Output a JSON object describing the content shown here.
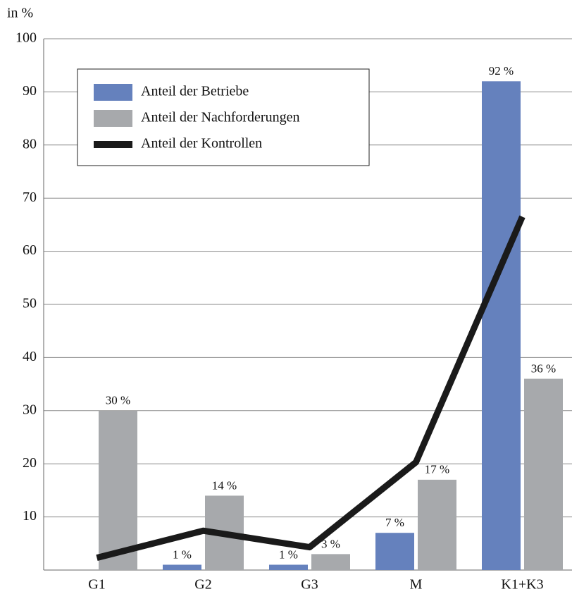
{
  "chart_data": {
    "type": "bar",
    "y_label": "in %",
    "categories": [
      "G1",
      "G2",
      "G3",
      "M",
      "K1+K3"
    ],
    "series": [
      {
        "name": "Anteil der Betriebe",
        "color": "#6581bd",
        "type": "bar",
        "values": [
          null,
          1,
          1,
          7,
          92
        ],
        "value_labels": [
          null,
          "1 %",
          "1 %",
          "7 %",
          "92 %"
        ]
      },
      {
        "name": "Anteil der Nachforderungen",
        "color": "#a7a9ac",
        "type": "bar",
        "values": [
          30,
          14,
          3,
          17,
          36
        ],
        "value_labels": [
          "30 %",
          "14 %",
          "3 %",
          "17 %",
          "36 %"
        ]
      },
      {
        "name": "Anteil der Kontrollen",
        "color": "#1a1a1a",
        "type": "line",
        "values": [
          2.3,
          7.4,
          4.3,
          20.3,
          66.5
        ]
      }
    ],
    "ylim": [
      0,
      100
    ],
    "yticks": [
      10,
      20,
      30,
      40,
      50,
      60,
      70,
      80,
      90,
      100
    ],
    "grid": true,
    "legend": "upper left"
  }
}
